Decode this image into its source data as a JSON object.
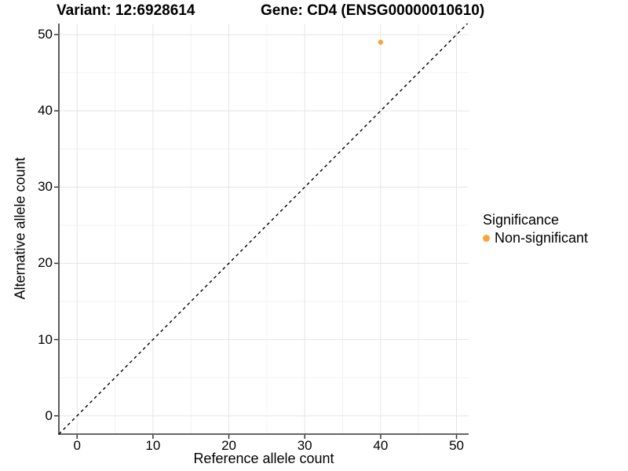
{
  "header": {
    "variant_title": "Variant: 12:6928614",
    "gene_title": "Gene: CD4 (ENSG00000010610)"
  },
  "axes": {
    "x_label": "Reference allele count",
    "y_label": "Alternative allele count"
  },
  "legend": {
    "title": "Significance",
    "items": [
      {
        "label": "Non-significant",
        "color": "#FAA43B"
      }
    ]
  },
  "colors": {
    "point": "#FAA43B",
    "axis_line": "#333333",
    "tick_mark": "#333333",
    "grid_major": "#E5E5E5",
    "grid_minor": "#F2F2F2",
    "identity_line": "#000000",
    "text": "#000000",
    "background": "#FFFFFF"
  },
  "chart_data": {
    "type": "scatter",
    "title": "Variant: 12:6928614   Gene: CD4 (ENSG00000010610)",
    "xlabel": "Reference allele count",
    "ylabel": "Alternative allele count",
    "xlim": [
      -2.4,
      51.6
    ],
    "ylim": [
      -2.4,
      51.45
    ],
    "x_ticks": [
      0,
      10,
      20,
      30,
      40,
      50
    ],
    "y_ticks": [
      0,
      10,
      20,
      30,
      40,
      50
    ],
    "x_minor_ticks": [
      5,
      15,
      25,
      35,
      45
    ],
    "y_minor_ticks": [
      5,
      15,
      25,
      35,
      45
    ],
    "grid": true,
    "legend_position": "right",
    "series": [
      {
        "name": "Non-significant",
        "color": "#FAA43B",
        "points": [
          {
            "x": 40,
            "y": 49
          }
        ]
      }
    ],
    "reference_line": {
      "kind": "identity",
      "slope": 1,
      "intercept": 0,
      "style": "dashed",
      "color": "#000000"
    }
  }
}
